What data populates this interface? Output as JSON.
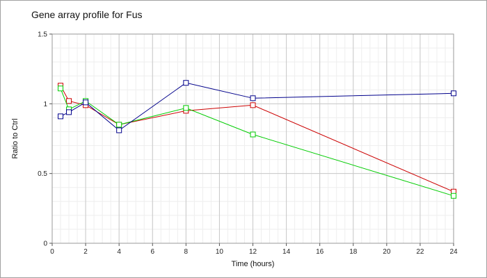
{
  "chart_data": {
    "type": "line",
    "title": "Gene array profile for Fus",
    "xlabel": "Time (hours)",
    "ylabel": "Ratio to Ctrl",
    "xlim": [
      0,
      24
    ],
    "ylim": [
      0,
      1.5
    ],
    "x_ticks": [
      "0",
      "2",
      "4",
      "6",
      "8",
      "10",
      "12",
      "14",
      "16",
      "18",
      "20",
      "22",
      "24"
    ],
    "y_ticks": [
      "0",
      "0.5",
      "1",
      "1.5"
    ],
    "grid": true,
    "series": [
      {
        "color": "#cc0000",
        "x": [
          0.5,
          1,
          2,
          4,
          8,
          12,
          24
        ],
        "y": [
          1.13,
          1.02,
          0.99,
          0.85,
          0.95,
          0.99,
          0.37
        ]
      },
      {
        "color": "#00cc00",
        "x": [
          0.5,
          1,
          2,
          4,
          8,
          12,
          24
        ],
        "y": [
          1.11,
          0.96,
          1.02,
          0.85,
          0.97,
          0.78,
          0.34
        ]
      },
      {
        "color": "#00008b",
        "x": [
          0.5,
          1,
          2,
          4,
          8,
          12,
          24
        ],
        "y": [
          0.91,
          0.94,
          1.01,
          0.81,
          1.15,
          1.04,
          1.075
        ]
      }
    ]
  }
}
